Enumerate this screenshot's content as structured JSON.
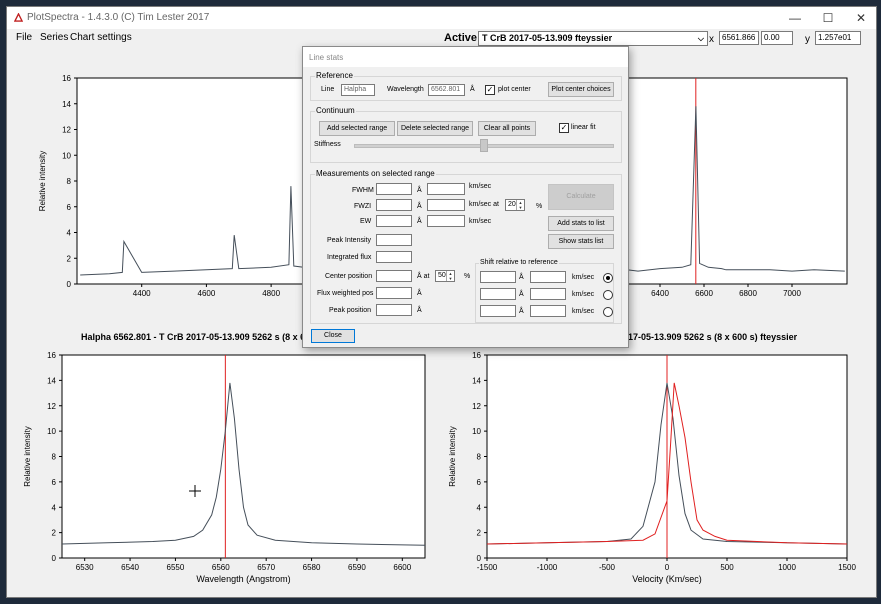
{
  "window": {
    "title": "PlotSpectra - 1.4.3.0 (C) Tim Lester 2017",
    "controls": {
      "minimize": "—",
      "maximize": "☐",
      "close": "✕"
    }
  },
  "menu": [
    "File",
    "Series",
    "Chart settings"
  ],
  "toolbar": {
    "active_label": "Active:",
    "active_value": "T CrB 2017-05-13.909 fteyssier",
    "x_label": "x",
    "x_value": "6561.866",
    "x_second_value": "0.00",
    "y_label": "y",
    "y_value": "1.257e01"
  },
  "colors": {
    "spectrum": "#454f5a",
    "marker": "#e02020",
    "accent": "#0078d7"
  },
  "top_chart_ylabel": "Relative intensity",
  "bottom_left_title": "Halpha 6562.801 - T CrB  2017-05-13.909  5262 s (8 x 6",
  "bottom_right_title": "017-05-13.909  5262 s (8 x 600 s)  fteyssier",
  "dialog": {
    "title": "Line stats",
    "reference": {
      "group": "Reference",
      "line_label": "Line",
      "line_value": "Halpha 65",
      "wavelength_label": "Wavelength",
      "wavelength_value": "6562.801",
      "unit": "Å",
      "plot_center_label": "plot center",
      "plot_center_button": "Plot center choices"
    },
    "continuum": {
      "group": "Continuum",
      "add_button": "Add selected range",
      "delete_button": "Delete selected range",
      "clear_button": "Clear all points",
      "linear_fit_label": "linear fit",
      "stiffness_label": "Stiffness",
      "stiffness_value": 0.5
    },
    "measurements": {
      "group": "Measurements on selected range",
      "fwhm_label": "FWHM",
      "fwzi_label": "FWZI",
      "ew_label": "EW",
      "a_unit": "Å",
      "kms_unit": "km/sec",
      "kms_at": "km/sec  at",
      "fwzi_pct": "20",
      "pct": "%",
      "calculate_button": "Calculate",
      "add_stats_button": "Add stats to list",
      "show_stats_button": "Show stats list",
      "peak_intensity_label": "Peak Intensity",
      "integrated_flux_label": "Integrated flux",
      "center_position_label": "Center position",
      "center_at": "Å  at",
      "center_pct": "50",
      "flux_weighted_label": "Flux weighted pos",
      "peak_position_label": "Peak position",
      "shift_group": "Shift relative to  reference"
    },
    "close_button": "Close"
  },
  "chart_data": [
    {
      "type": "line",
      "title": "",
      "xlabel": "",
      "ylabel": "Relative intensity",
      "xlim": [
        4200,
        7250
      ],
      "ylim": [
        0,
        16
      ],
      "x_ticks": [
        4400,
        4600,
        4800,
        5000,
        6400,
        6600,
        6800,
        7000
      ],
      "y_ticks": [
        0,
        2,
        4,
        6,
        8,
        10,
        12,
        14,
        16
      ],
      "grid": false,
      "marker_line_x": 6562.8,
      "series": [
        {
          "x": [
            4210,
            4300,
            4340,
            4345,
            4400,
            4500,
            4600,
            4680,
            4686,
            4700,
            4800,
            4855,
            4861,
            4870,
            4900,
            5000,
            5050,
            6250,
            6300,
            6400,
            6500,
            6540,
            6563,
            6580,
            6620,
            6680,
            6700,
            6800,
            6900,
            7000,
            7100,
            7240
          ],
          "y": [
            0.7,
            0.8,
            0.9,
            3.3,
            0.9,
            1.0,
            1.1,
            1.2,
            3.8,
            1.2,
            1.3,
            1.5,
            7.6,
            1.4,
            1.3,
            1.4,
            1.4,
            1.1,
            1.0,
            1.2,
            1.3,
            1.5,
            13.8,
            1.6,
            1.3,
            1.2,
            1.1,
            1.1,
            1.1,
            1.0,
            1.1,
            1.0
          ]
        }
      ]
    },
    {
      "type": "line",
      "title": "Halpha 6562.801 - T CrB  2017-05-13.909  5262 s (8 x 6",
      "xlabel": "Wavelength (Angstrom)",
      "ylabel": "Relative intensity",
      "xlim": [
        6525,
        6605
      ],
      "ylim": [
        0,
        16
      ],
      "x_ticks": [
        6530,
        6540,
        6550,
        6560,
        6570,
        6580,
        6590,
        6600
      ],
      "y_ticks": [
        0,
        2,
        4,
        6,
        8,
        10,
        12,
        14,
        16
      ],
      "marker_line_x": 6561.0,
      "series": [
        {
          "x": [
            6525,
            6535,
            6545,
            6550,
            6554,
            6556,
            6558,
            6559,
            6560,
            6561,
            6562,
            6563,
            6564,
            6565,
            6566,
            6568,
            6572,
            6580,
            6590,
            6605
          ],
          "y": [
            1.1,
            1.2,
            1.3,
            1.4,
            1.7,
            2.2,
            3.4,
            4.8,
            7.0,
            10.0,
            13.8,
            11.0,
            7.0,
            4.0,
            2.6,
            1.8,
            1.4,
            1.2,
            1.1,
            1.0
          ]
        }
      ]
    },
    {
      "type": "line",
      "title": "017-05-13.909  5262 s (8 x 600 s)  fteyssier",
      "xlabel": "Velocity (Km/sec)",
      "ylabel": "Relative intensity",
      "xlim": [
        -1500,
        1500
      ],
      "ylim": [
        0,
        16
      ],
      "x_ticks": [
        -1500,
        -1000,
        -500,
        0,
        500,
        1000,
        1500
      ],
      "y_ticks": [
        0,
        2,
        4,
        6,
        8,
        10,
        12,
        14,
        16
      ],
      "marker_line_x": 0,
      "series": [
        {
          "color": "#454f5a",
          "x": [
            -1500,
            -1000,
            -500,
            -300,
            -200,
            -100,
            -50,
            0,
            50,
            100,
            150,
            200,
            300,
            500,
            1000,
            1500
          ],
          "y": [
            1.1,
            1.2,
            1.3,
            1.5,
            2.5,
            6.0,
            10.5,
            13.8,
            11.0,
            6.5,
            3.5,
            2.2,
            1.5,
            1.3,
            1.2,
            1.1
          ]
        },
        {
          "color": "#e02020",
          "x": [
            -1500,
            -1000,
            -500,
            -200,
            -100,
            0,
            30,
            60,
            100,
            150,
            200,
            250,
            300,
            400,
            500,
            1000,
            1500
          ],
          "y": [
            1.1,
            1.2,
            1.3,
            1.4,
            1.9,
            4.5,
            9.0,
            13.8,
            12.0,
            9.5,
            6.0,
            3.0,
            2.2,
            1.7,
            1.4,
            1.2,
            1.1
          ]
        }
      ]
    }
  ]
}
